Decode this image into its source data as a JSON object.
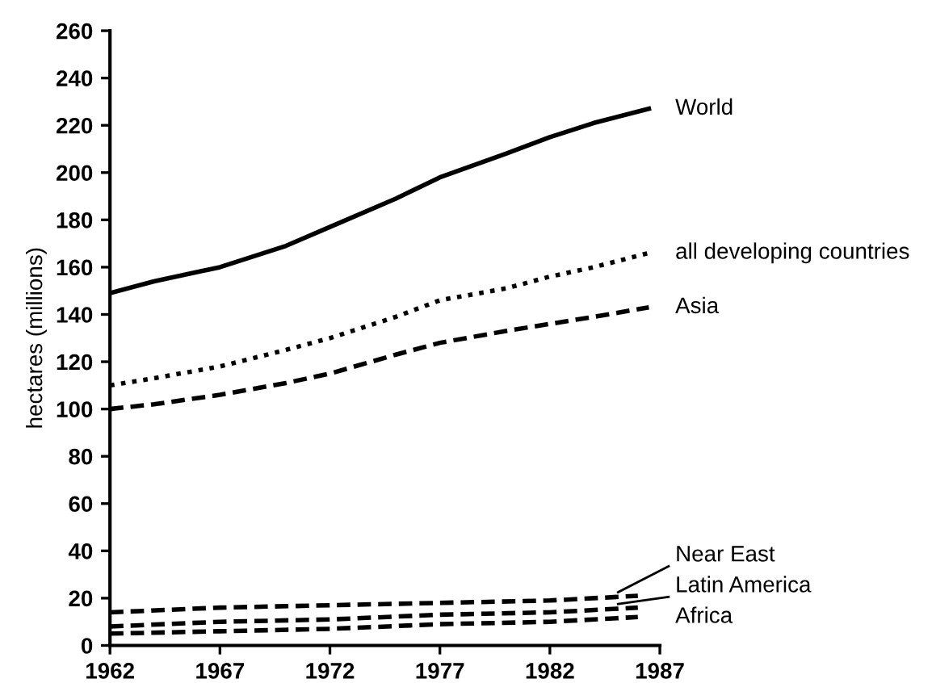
{
  "chart_data": {
    "type": "line",
    "ylabel": "hectares (millions)",
    "xlim": [
      1962,
      1987
    ],
    "xticks": [
      1962,
      1967,
      1972,
      1977,
      1982,
      1987
    ],
    "ylim": [
      0,
      260
    ],
    "yticks": [
      0,
      20,
      40,
      60,
      80,
      100,
      120,
      140,
      160,
      180,
      200,
      220,
      240,
      260
    ],
    "grid": false,
    "legend": false,
    "series": [
      {
        "name": "World",
        "color": "#000000",
        "line_style": "solid",
        "x": [
          1962,
          1964,
          1967,
          1970,
          1972,
          1975,
          1977,
          1980,
          1982,
          1984,
          1986.5
        ],
        "values": [
          149,
          154,
          160,
          169,
          177,
          189,
          198,
          208,
          215,
          221,
          227
        ]
      },
      {
        "name": "all developing countries",
        "color": "#000000",
        "line_style": "dotted",
        "x": [
          1962,
          1964,
          1967,
          1970,
          1972,
          1975,
          1977,
          1980,
          1982,
          1984,
          1986.5
        ],
        "values": [
          110,
          113,
          118,
          125,
          130,
          139,
          146,
          151,
          156,
          160,
          166
        ]
      },
      {
        "name": "Asia",
        "color": "#000000",
        "line_style": "dashed",
        "x": [
          1962,
          1964,
          1967,
          1970,
          1972,
          1975,
          1977,
          1980,
          1982,
          1984,
          1986.5
        ],
        "values": [
          100,
          102,
          106,
          111,
          115,
          123,
          128,
          133,
          136,
          139,
          143
        ]
      },
      {
        "name": "Near East",
        "color": "#000000",
        "line_style": "dashed",
        "x": [
          1962,
          1967,
          1972,
          1977,
          1982,
          1986
        ],
        "values": [
          14,
          16,
          17,
          18,
          19,
          21
        ]
      },
      {
        "name": "Latin America",
        "color": "#000000",
        "line_style": "dashed",
        "x": [
          1962,
          1967,
          1972,
          1977,
          1982,
          1986
        ],
        "values": [
          8,
          10,
          11,
          13,
          14,
          16
        ]
      },
      {
        "name": "Africa",
        "color": "#000000",
        "line_style": "dashed",
        "x": [
          1962,
          1967,
          1972,
          1977,
          1982,
          1986
        ],
        "values": [
          5,
          6,
          7,
          9,
          10,
          12
        ]
      }
    ]
  }
}
